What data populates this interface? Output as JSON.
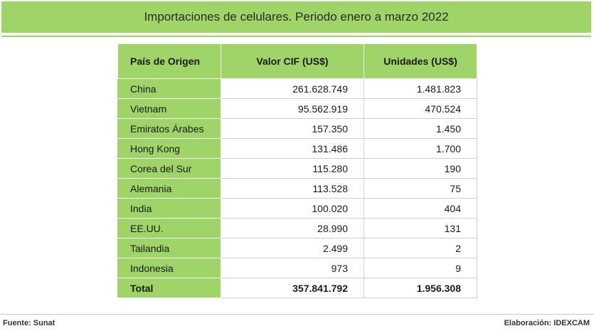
{
  "title": "Importaciones de celulares. Periodo enero a marzo 2022",
  "colors": {
    "accent": "#9fd466"
  },
  "chart_data": {
    "type": "table",
    "columns": [
      "País de Origen",
      "Valor CIF (US$)",
      "Unidades (US$)"
    ],
    "rows": [
      {
        "country": "China",
        "cif": "261.628.749",
        "units": "1.481.823"
      },
      {
        "country": "Vietnam",
        "cif": "95.562.919",
        "units": "470.524"
      },
      {
        "country": "Emiratos Árabes",
        "cif": "157.350",
        "units": "1.450"
      },
      {
        "country": "Hong Kong",
        "cif": "131.486",
        "units": "1.700"
      },
      {
        "country": "Corea del Sur",
        "cif": "115.280",
        "units": "190"
      },
      {
        "country": "Alemania",
        "cif": "113.528",
        "units": "75"
      },
      {
        "country": "India",
        "cif": "100.020",
        "units": "404"
      },
      {
        "country": "EE.UU.",
        "cif": "28.990",
        "units": "131"
      },
      {
        "country": "Tailandia",
        "cif": "2.499",
        "units": "2"
      },
      {
        "country": "Indonesia",
        "cif": "973",
        "units": "9"
      }
    ],
    "total": {
      "country": "Total",
      "cif": "357.841.792",
      "units": "1.956.308"
    }
  },
  "footer": {
    "source": "Fuente:  Sunat",
    "credit": "Elaboración: IDEXCAM"
  }
}
